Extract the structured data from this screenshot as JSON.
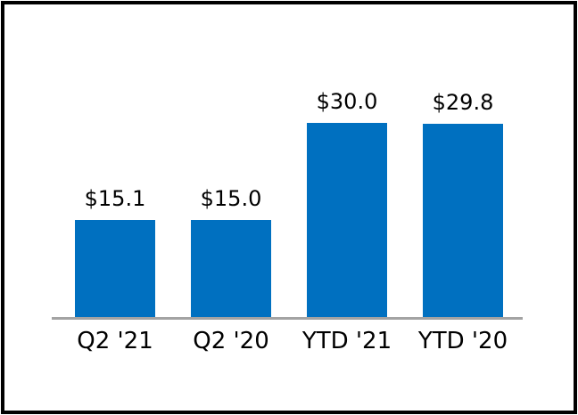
{
  "figure": {
    "background_color": "#FFFFFF",
    "border_color": "#000000",
    "text_color": "#000000"
  },
  "chart_data": {
    "type": "bar",
    "categories": [
      "Q2 '21",
      "Q2 '20",
      "YTD '21",
      "YTD '20"
    ],
    "values": [
      15.1,
      15.0,
      30.0,
      29.8
    ],
    "value_labels": [
      "$15.1",
      "$15.0",
      "$30.0",
      "$29.8"
    ],
    "title": "",
    "xlabel": "",
    "ylabel": "",
    "ylim": [
      0,
      33
    ],
    "grid": false,
    "legend": "none",
    "bar_color": "#0070C0",
    "axis_line_color": "#A3A3A3",
    "data_label_position": "above-bars",
    "category_label_position": "below-axis"
  }
}
